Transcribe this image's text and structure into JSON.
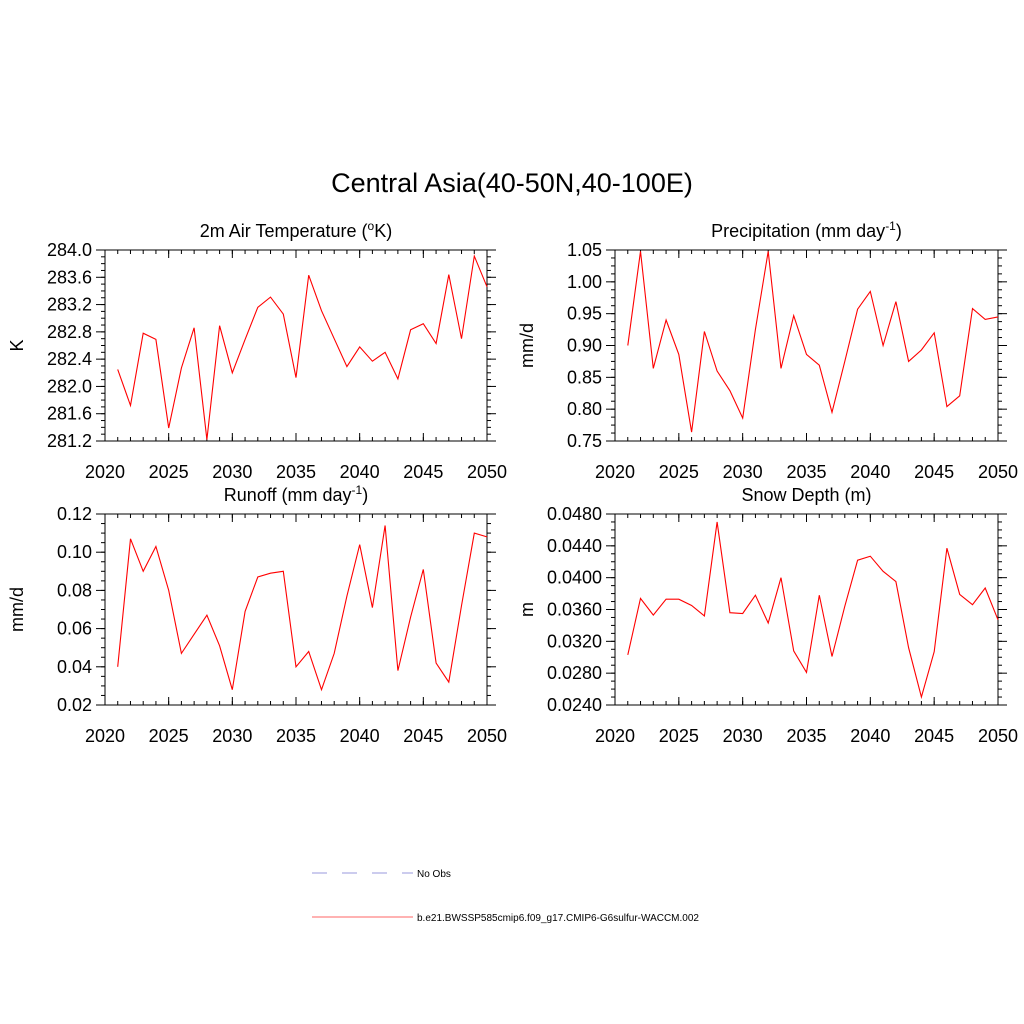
{
  "page": {
    "title": "Central Asia(40-50N,40-100E)"
  },
  "chart_data": [
    {
      "type": "line",
      "title": "2m Air Temperature (",
      "title_sup": "o",
      "title_after": "K)",
      "title_sup_trailing": "",
      "ylabel": "K",
      "xlim": [
        2020,
        2050
      ],
      "ylim": [
        281.2,
        284.0
      ],
      "xticks": [
        2020,
        2025,
        2030,
        2035,
        2040,
        2045,
        2050
      ],
      "xtick_labels": [
        "2020",
        "2025",
        "2030",
        "2035",
        "2040",
        "2045",
        "2050"
      ],
      "yticks": [
        281.2,
        281.6,
        282.0,
        282.4,
        282.8,
        283.2,
        283.6,
        284.0
      ],
      "ytick_labels": [
        "281.2",
        "281.6",
        "282.0",
        "282.4",
        "282.8",
        "283.2",
        "283.6",
        "284.0"
      ],
      "x": [
        2021,
        2022,
        2023,
        2024,
        2025,
        2026,
        2027,
        2028,
        2029,
        2030,
        2031,
        2032,
        2033,
        2034,
        2035,
        2036,
        2037,
        2038,
        2039,
        2040,
        2041,
        2042,
        2043,
        2044,
        2045,
        2046,
        2047,
        2048,
        2049,
        2050
      ],
      "series": [
        {
          "color": "#ff0000",
          "values": [
            282.25,
            281.72,
            282.78,
            282.69,
            281.39,
            282.27,
            282.86,
            281.22,
            282.89,
            282.2,
            282.69,
            283.16,
            283.31,
            283.06,
            282.13,
            283.63,
            283.11,
            282.7,
            282.29,
            282.58,
            282.37,
            282.5,
            282.11,
            282.83,
            282.92,
            282.63,
            283.64,
            282.7,
            283.91,
            283.46
          ]
        }
      ]
    },
    {
      "type": "line",
      "title": "Precipitation (mm day",
      "title_sup": "-1",
      "title_after": ")",
      "ylabel": "mm/d",
      "xlim": [
        2020,
        2050
      ],
      "ylim": [
        0.75,
        1.05
      ],
      "xticks": [
        2020,
        2025,
        2030,
        2035,
        2040,
        2045,
        2050
      ],
      "xtick_labels": [
        "2020",
        "2025",
        "2030",
        "2035",
        "2040",
        "2045",
        "2050"
      ],
      "yticks": [
        0.75,
        0.8,
        0.85,
        0.9,
        0.95,
        1.0,
        1.05
      ],
      "ytick_labels": [
        "0.75",
        "0.80",
        "0.85",
        "0.90",
        "0.95",
        "1.00",
        "1.05"
      ],
      "x": [
        2021,
        2022,
        2023,
        2024,
        2025,
        2026,
        2027,
        2028,
        2029,
        2030,
        2031,
        2032,
        2033,
        2034,
        2035,
        2036,
        2037,
        2038,
        2039,
        2040,
        2041,
        2042,
        2043,
        2044,
        2045,
        2046,
        2047,
        2048,
        2049,
        2050
      ],
      "series": [
        {
          "color": "#ff0000",
          "values": [
            0.9,
            1.048,
            0.864,
            0.94,
            0.886,
            0.764,
            0.922,
            0.86,
            0.829,
            0.786,
            0.925,
            1.048,
            0.864,
            0.947,
            0.886,
            0.869,
            0.795,
            0.875,
            0.957,
            0.985,
            0.9,
            0.969,
            0.875,
            0.893,
            0.92,
            0.804,
            0.821,
            0.958,
            0.941,
            0.945
          ]
        }
      ]
    },
    {
      "type": "line",
      "title": "Runoff (mm day",
      "title_sup": "-1",
      "title_after": ")",
      "ylabel": "mm/d",
      "xlim": [
        2020,
        2050
      ],
      "ylim": [
        0.02,
        0.12
      ],
      "xticks": [
        2020,
        2025,
        2030,
        2035,
        2040,
        2045,
        2050
      ],
      "xtick_labels": [
        "2020",
        "2025",
        "2030",
        "2035",
        "2040",
        "2045",
        "2050"
      ],
      "yticks": [
        0.02,
        0.04,
        0.06,
        0.08,
        0.1,
        0.12
      ],
      "ytick_labels": [
        "0.02",
        "0.04",
        "0.06",
        "0.08",
        "0.10",
        "0.12"
      ],
      "x": [
        2021,
        2022,
        2023,
        2024,
        2025,
        2026,
        2027,
        2028,
        2029,
        2030,
        2031,
        2032,
        2033,
        2034,
        2035,
        2036,
        2037,
        2038,
        2039,
        2040,
        2041,
        2042,
        2043,
        2044,
        2045,
        2046,
        2047,
        2048,
        2049,
        2050
      ],
      "series": [
        {
          "color": "#ff0000",
          "values": [
            0.04,
            0.107,
            0.09,
            0.103,
            0.08,
            0.047,
            0.057,
            0.067,
            0.051,
            0.028,
            0.069,
            0.087,
            0.089,
            0.09,
            0.04,
            0.048,
            0.028,
            0.047,
            0.077,
            0.104,
            0.071,
            0.114,
            0.038,
            0.066,
            0.091,
            0.042,
            0.032,
            0.072,
            0.11,
            0.108
          ]
        }
      ]
    },
    {
      "type": "line",
      "title": "Snow Depth (m)",
      "title_sup": "",
      "title_after": "",
      "ylabel": "m",
      "xlim": [
        2020,
        2050
      ],
      "ylim": [
        0.024,
        0.048
      ],
      "xticks": [
        2020,
        2025,
        2030,
        2035,
        2040,
        2045,
        2050
      ],
      "xtick_labels": [
        "2020",
        "2025",
        "2030",
        "2035",
        "2040",
        "2045",
        "2050"
      ],
      "yticks": [
        0.024,
        0.028,
        0.032,
        0.036,
        0.04,
        0.044,
        0.048
      ],
      "ytick_labels": [
        "0.0240",
        "0.0280",
        "0.0320",
        "0.0360",
        "0.0400",
        "0.0440",
        "0.0480"
      ],
      "x": [
        2021,
        2022,
        2023,
        2024,
        2025,
        2026,
        2027,
        2028,
        2029,
        2030,
        2031,
        2032,
        2033,
        2034,
        2035,
        2036,
        2037,
        2038,
        2039,
        2040,
        2041,
        2042,
        2043,
        2044,
        2045,
        2046,
        2047,
        2048,
        2049,
        2050
      ],
      "series": [
        {
          "color": "#ff0000",
          "values": [
            0.0303,
            0.0374,
            0.0353,
            0.0373,
            0.0373,
            0.0365,
            0.0352,
            0.047,
            0.0356,
            0.0355,
            0.0378,
            0.0343,
            0.04,
            0.0308,
            0.0281,
            0.0378,
            0.0301,
            0.0364,
            0.0422,
            0.0427,
            0.0408,
            0.0395,
            0.0312,
            0.025,
            0.0307,
            0.0437,
            0.0379,
            0.0366,
            0.0387,
            0.0347
          ]
        }
      ]
    }
  ],
  "legend": {
    "items": [
      {
        "label": "No Obs",
        "color": "#9999dd",
        "style": "dashed"
      },
      {
        "label": "b.e21.BWSSP585cmip6.f09_g17.CMIP6-G6sulfur-WACCM.002",
        "color": "#ff6666",
        "style": "solid"
      }
    ]
  }
}
